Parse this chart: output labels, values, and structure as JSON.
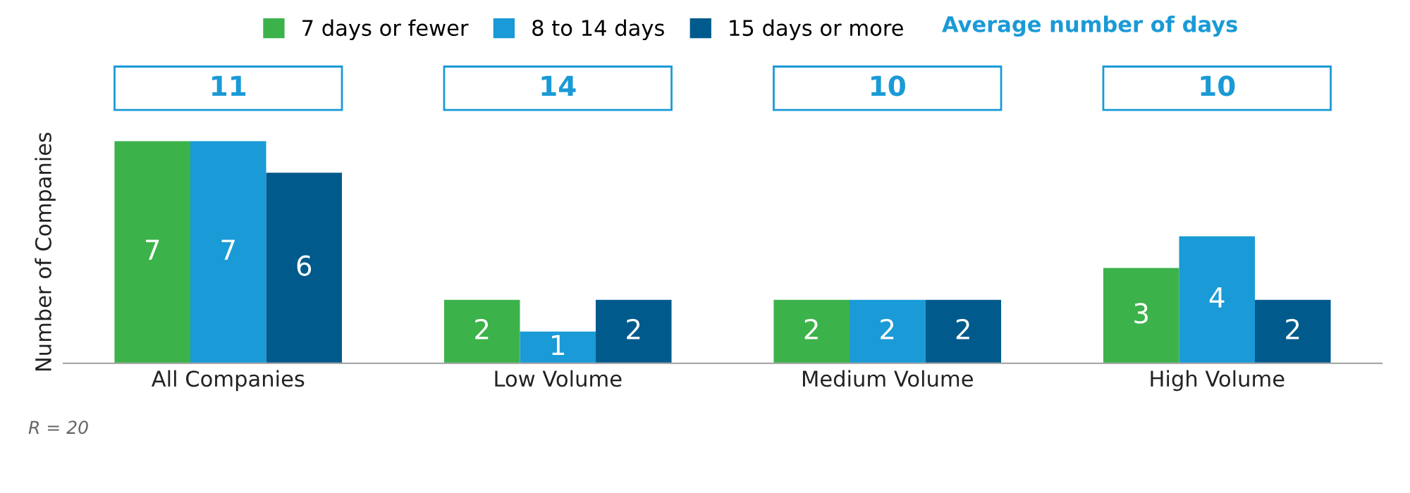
{
  "chart_data": {
    "type": "bar",
    "ylabel": "Number of Companies",
    "categories": [
      "All Companies",
      "Low Volume",
      "Medium Volume",
      "High Volume"
    ],
    "series": [
      {
        "name": "7 days or fewer",
        "color": "#3cb24a",
        "values": [
          7,
          2,
          2,
          3
        ]
      },
      {
        "name": "8 to 14 days",
        "color": "#1a9ad6",
        "values": [
          7,
          1,
          2,
          4
        ]
      },
      {
        "name": "15 days or more",
        "color": "#005a8c",
        "values": [
          6,
          2,
          2,
          2
        ]
      }
    ],
    "data_labels": true,
    "legend": "top",
    "grid": false,
    "annotations": [
      "Average number of days",
      "11",
      "14",
      "10",
      "10",
      "R = 20"
    ]
  }
}
